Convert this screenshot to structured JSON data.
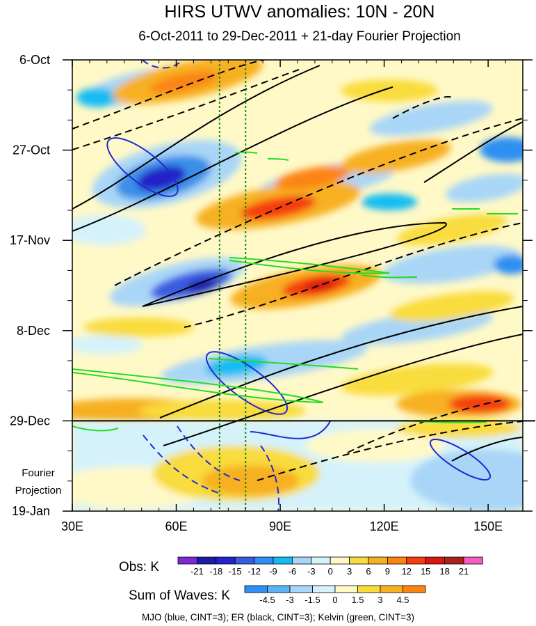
{
  "chart_data": {
    "type": "heatmap",
    "title": "HIRS UTWV anomalies: 10N - 20N",
    "subtitle": "6-Oct-2011 to 29-Dec-2011 + 21-day Fourier Projection",
    "x_axis": {
      "range_deg_east": [
        30,
        160
      ],
      "ticks": [
        30,
        60,
        90,
        120,
        150
      ],
      "tick_labels": [
        "30E",
        "60E",
        "90E",
        "120E",
        "150E"
      ]
    },
    "y_axis": {
      "direction": "time increasing downward",
      "range_days_from_start": [
        0,
        105
      ],
      "ticks_days": [
        0,
        21,
        42,
        63,
        84,
        105
      ],
      "tick_labels": [
        "6-Oct",
        "27-Oct",
        "17-Nov",
        "8-Dec",
        "29-Dec",
        "19-Jan"
      ]
    },
    "projection_start_label": "29-Dec",
    "projection_start_day": 84,
    "projection_label_line1": "Fourier",
    "projection_label_line2": "Projection",
    "reference_meridians_deg_east": [
      72.5,
      80
    ],
    "obs_colorbar": {
      "title": "Obs: K",
      "levels": [
        "-21",
        "-18",
        "-15",
        "-12",
        "-9",
        "-6",
        "-3",
        "0",
        "3",
        "6",
        "9",
        "12",
        "15",
        "18",
        "21"
      ],
      "colors": [
        "#7b2ad6",
        "#1c1ca5",
        "#2323c8",
        "#3a5be0",
        "#2f8ff2",
        "#12bcf2",
        "#a9d6f7",
        "#d5f2fb",
        "#fff9c8",
        "#f9dc3c",
        "#f7b021",
        "#fb8413",
        "#f53d0e",
        "#d9160b",
        "#a8211c",
        "#f35dc4"
      ]
    },
    "waves_colorbar": {
      "title": "Sum of Waves: K",
      "levels": [
        "-4.5",
        "-3",
        "-1.5",
        "0",
        "1.5",
        "3",
        "4.5"
      ],
      "colors": [
        "#2f8ff2",
        "#5ab4f5",
        "#a9d6f7",
        "#d5f2fb",
        "#fff9c8",
        "#f9dc3c",
        "#f7b021",
        "#fb8413"
      ]
    },
    "contour_legend": "MJO (blue, CINT=3); ER (black, CINT=3); Kelvin (green, CINT=3)",
    "contour_colors": {
      "MJO": "#1f2bd0",
      "ER": "#000000",
      "Kelvin": "#22dd22",
      "reference_lines": "#1a8a1a"
    },
    "contour_cint": 3
  }
}
